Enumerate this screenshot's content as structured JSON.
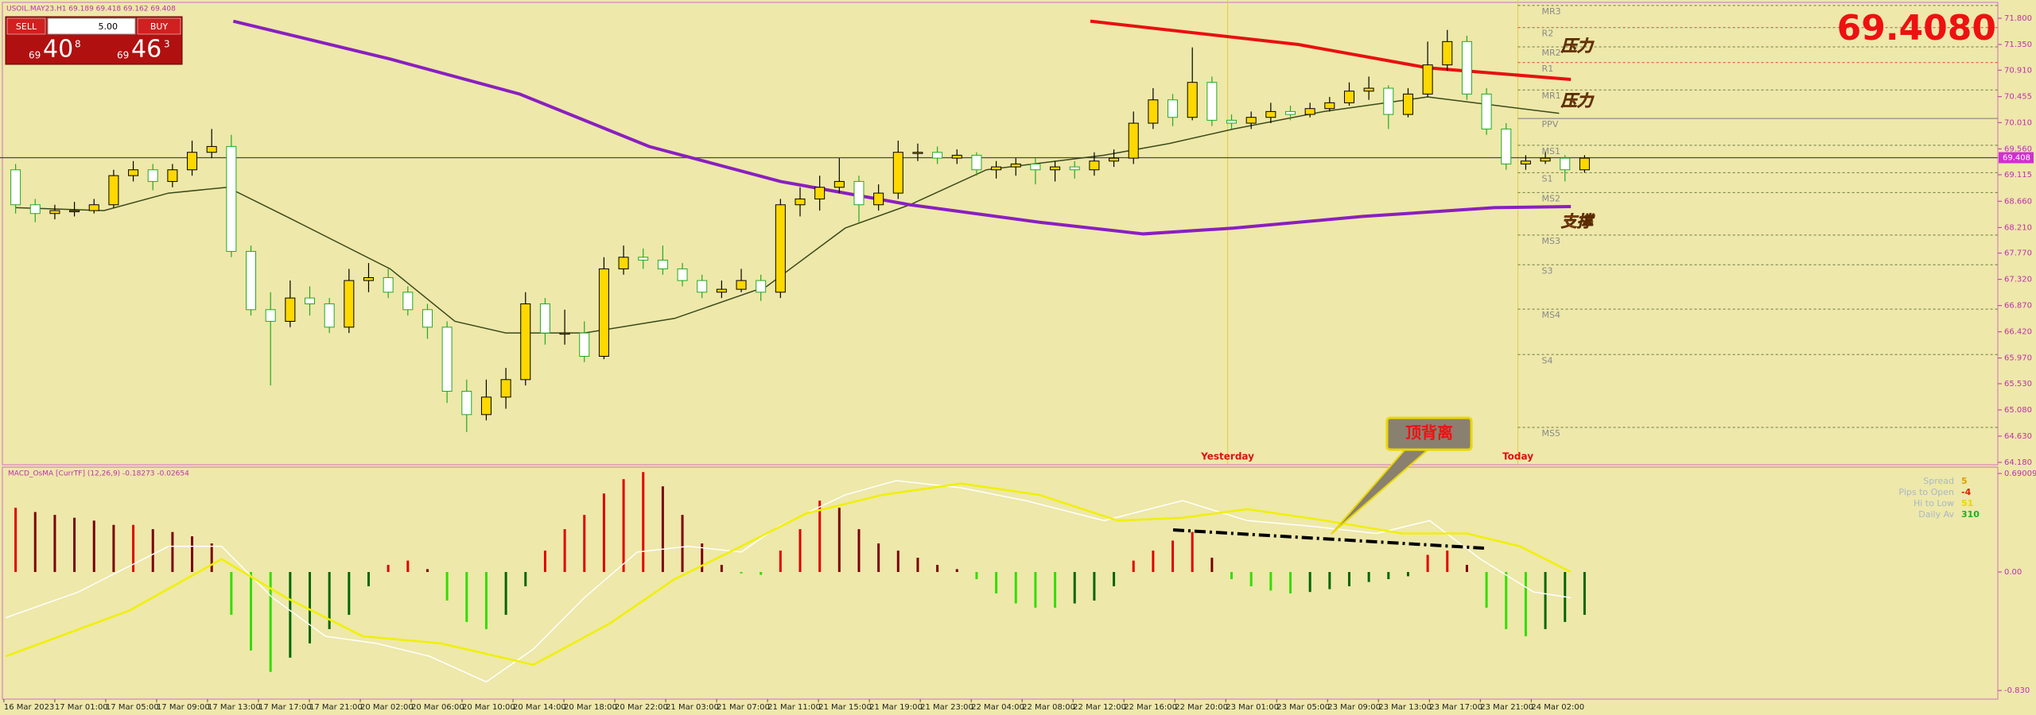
{
  "header": {
    "symbol_line": "USOIL.MAY23.H1  69.189 69.418 69.162 69.408"
  },
  "trade_panel": {
    "sell": "SELL",
    "lot": "5.00",
    "buy": "BUY",
    "bid_small": "69",
    "bid_big": "40",
    "bid_frac": "8",
    "ask_small": "69",
    "ask_big": "46",
    "ask_frac": "3"
  },
  "price_display": "69.4080",
  "price_chart": {
    "ylim": [
      64.18,
      71.8
    ],
    "yticks": [
      {
        "value": 71.8,
        "label": "71.800"
      },
      {
        "value": 71.35,
        "label": "71.350"
      },
      {
        "value": 70.91,
        "label": "70.910"
      },
      70.455,
      {
        "value": 70.01,
        "label": "70.010"
      },
      {
        "value": 69.56,
        "label": "69.560"
      },
      69.115,
      {
        "value": 68.66,
        "label": "68.660"
      },
      {
        "value": 68.21,
        "label": "68.210"
      },
      {
        "value": 67.77,
        "label": "67.770"
      },
      {
        "value": 67.32,
        "label": "67.320"
      },
      {
        "value": 66.87,
        "label": "66.870"
      },
      {
        "value": 66.42,
        "label": "66.420"
      },
      {
        "value": 65.97,
        "label": "65.970"
      },
      {
        "value": 65.53,
        "label": "65.530"
      },
      {
        "value": 65.08,
        "label": "65.080"
      },
      {
        "value": 64.63,
        "label": "64.630"
      },
      {
        "value": 64.18,
        "label": "64.180"
      }
    ],
    "current_price": {
      "value": 69.408,
      "label": "69.408"
    },
    "colors": {
      "up": "#ffd800",
      "up_outline": "#000000",
      "down": "#ffffff",
      "down_outline": "#22aa22"
    },
    "candles": [
      [
        69.2,
        69.3,
        68.45,
        68.6
      ],
      [
        68.6,
        68.7,
        68.3,
        68.45
      ],
      [
        68.45,
        68.6,
        68.35,
        68.5
      ],
      [
        68.5,
        68.65,
        68.4,
        68.5
      ],
      [
        68.5,
        68.7,
        68.45,
        68.6
      ],
      [
        68.6,
        69.2,
        68.55,
        69.1
      ],
      [
        69.1,
        69.35,
        69.0,
        69.2
      ],
      [
        69.2,
        69.3,
        68.85,
        69.0
      ],
      [
        69.0,
        69.3,
        68.9,
        69.2
      ],
      [
        69.2,
        69.7,
        69.1,
        69.5
      ],
      [
        69.5,
        69.9,
        69.4,
        69.6
      ],
      [
        69.6,
        69.8,
        67.7,
        67.8
      ],
      [
        67.8,
        67.9,
        66.7,
        66.8
      ],
      [
        66.8,
        67.1,
        65.5,
        66.6
      ],
      [
        66.6,
        67.3,
        66.5,
        67.0
      ],
      [
        67.0,
        67.2,
        66.7,
        66.9
      ],
      [
        66.9,
        67.0,
        66.4,
        66.5
      ],
      [
        66.5,
        67.5,
        66.4,
        67.3
      ],
      [
        67.3,
        67.6,
        67.1,
        67.35
      ],
      [
        67.35,
        67.5,
        67.0,
        67.1
      ],
      [
        67.1,
        67.2,
        66.7,
        66.8
      ],
      [
        66.8,
        66.9,
        66.3,
        66.5
      ],
      [
        66.5,
        66.6,
        65.2,
        65.4
      ],
      [
        65.4,
        65.6,
        64.7,
        65.0
      ],
      [
        65.0,
        65.6,
        64.9,
        65.3
      ],
      [
        65.3,
        65.8,
        65.1,
        65.6
      ],
      [
        65.6,
        67.1,
        65.5,
        66.9
      ],
      [
        66.9,
        67.0,
        66.2,
        66.4
      ],
      [
        66.4,
        66.8,
        66.2,
        66.4
      ],
      [
        66.4,
        66.6,
        65.9,
        66.0
      ],
      [
        66.0,
        67.7,
        65.95,
        67.5
      ],
      [
        67.5,
        67.9,
        67.4,
        67.7
      ],
      [
        67.7,
        67.85,
        67.5,
        67.65
      ],
      [
        67.65,
        67.9,
        67.4,
        67.5
      ],
      [
        67.5,
        67.6,
        67.2,
        67.3
      ],
      [
        67.3,
        67.4,
        67.0,
        67.1
      ],
      [
        67.1,
        67.3,
        67.0,
        67.15
      ],
      [
        67.15,
        67.5,
        67.1,
        67.3
      ],
      [
        67.3,
        67.4,
        66.95,
        67.1
      ],
      [
        67.1,
        68.7,
        67.0,
        68.6
      ],
      [
        68.6,
        68.9,
        68.4,
        68.7
      ],
      [
        68.7,
        69.1,
        68.5,
        68.9
      ],
      [
        68.9,
        69.4,
        68.8,
        69.0
      ],
      [
        69.0,
        69.1,
        68.3,
        68.6
      ],
      [
        68.6,
        68.95,
        68.5,
        68.8
      ],
      [
        68.8,
        69.7,
        68.7,
        69.5
      ],
      [
        69.5,
        69.65,
        69.35,
        69.5
      ],
      [
        69.5,
        69.6,
        69.3,
        69.4
      ],
      [
        69.4,
        69.55,
        69.3,
        69.45
      ],
      [
        69.45,
        69.5,
        69.1,
        69.2
      ],
      [
        69.2,
        69.35,
        69.05,
        69.25
      ],
      [
        69.25,
        69.4,
        69.1,
        69.3
      ],
      [
        69.3,
        69.4,
        68.95,
        69.2
      ],
      [
        69.2,
        69.35,
        69.0,
        69.25
      ],
      [
        69.25,
        69.35,
        69.05,
        69.2
      ],
      [
        69.2,
        69.5,
        69.1,
        69.35
      ],
      [
        69.35,
        69.55,
        69.25,
        69.4
      ],
      [
        69.4,
        70.2,
        69.3,
        70.0
      ],
      [
        70.0,
        70.6,
        69.9,
        70.4
      ],
      [
        70.4,
        70.5,
        69.95,
        70.1
      ],
      [
        70.1,
        71.3,
        70.05,
        70.7
      ],
      [
        70.7,
        70.8,
        69.95,
        70.05
      ],
      [
        70.05,
        70.15,
        69.9,
        70.0
      ],
      [
        70.0,
        70.2,
        69.9,
        70.1
      ],
      [
        70.1,
        70.35,
        70.0,
        70.2
      ],
      [
        70.2,
        70.3,
        70.05,
        70.15
      ],
      [
        70.15,
        70.35,
        70.1,
        70.25
      ],
      [
        70.25,
        70.45,
        70.2,
        70.35
      ],
      [
        70.35,
        70.7,
        70.3,
        70.55
      ],
      [
        70.55,
        70.8,
        70.4,
        70.6
      ],
      [
        70.6,
        70.65,
        69.9,
        70.15
      ],
      [
        70.15,
        70.6,
        70.1,
        70.5
      ],
      [
        70.5,
        71.4,
        70.45,
        71.0
      ],
      [
        71.0,
        71.6,
        70.9,
        71.4
      ],
      [
        71.4,
        71.5,
        70.4,
        70.5
      ],
      [
        70.5,
        70.6,
        69.8,
        69.9
      ],
      [
        69.9,
        70.0,
        69.2,
        69.3
      ],
      [
        69.3,
        69.45,
        69.2,
        69.35
      ],
      [
        69.35,
        69.5,
        69.3,
        69.4
      ],
      [
        69.4,
        69.45,
        69.0,
        69.2
      ],
      [
        69.2,
        69.45,
        69.15,
        69.4
      ]
    ],
    "ma": [
      {
        "color": "#3a4a1a",
        "width": 1.5,
        "x": [
          0,
          4.5,
          7.8,
          10.8,
          13.8,
          19.1,
          22.4,
          25,
          29,
          33.6,
          38.3,
          42.3,
          45.6,
          49.5,
          55.5,
          58.8,
          62.1,
          66.7,
          72,
          78.7
        ],
        "values": [
          68.55,
          68.5,
          68.8,
          68.9,
          68.4,
          67.5,
          66.6,
          66.4,
          66.4,
          66.65,
          67.2,
          68.2,
          68.6,
          69.2,
          69.45,
          69.65,
          69.9,
          70.2,
          70.45,
          70.17
        ]
      },
      {
        "color": "#8a1fc0",
        "width": 4,
        "x": [
          11.1,
          19.1,
          25.7,
          32.3,
          39,
          45.6,
          52.2,
          57.5,
          62.1,
          68.7,
          75.4,
          79.3
        ],
        "values": [
          71.75,
          71.1,
          70.5,
          69.6,
          69.0,
          68.6,
          68.3,
          68.1,
          68.2,
          68.4,
          68.55,
          68.57
        ]
      },
      {
        "color": "#e81010",
        "width": 4,
        "x": [
          54.8,
          65.4,
          72,
          79.3
        ],
        "values": [
          71.75,
          71.35,
          70.95,
          70.75
        ]
      }
    ],
    "pivots": [
      {
        "label": "MR3",
        "value": 72.02
      },
      {
        "label": "R2",
        "value": 71.64
      },
      {
        "label": "MR2",
        "value": 71.31
      },
      {
        "label": "R1",
        "value": 71.04
      },
      {
        "label": "MR1",
        "value": 70.57
      },
      {
        "label": "PPV",
        "value": 70.08
      },
      {
        "label": "MS1",
        "value": 69.62
      },
      {
        "label": "S1",
        "value": 69.15
      },
      {
        "label": "MS2",
        "value": 68.81
      },
      {
        "label": "MS3",
        "value": 68.08
      },
      {
        "label": "S3",
        "value": 67.57
      },
      {
        "label": "MS4",
        "value": 66.81
      },
      {
        "label": "S4",
        "value": 66.03
      },
      {
        "label": "MS5",
        "value": 64.78
      }
    ],
    "sessions": [
      {
        "label": "Yesterday",
        "x": 61.8
      },
      {
        "label": "Today",
        "x": 76.6
      }
    ],
    "notes": [
      {
        "text": "压力",
        "x": 78.8,
        "value": 71.31
      },
      {
        "text": "压力",
        "x": 78.8,
        "value": 70.37
      },
      {
        "text": "支撑",
        "x": 78.8,
        "value": 68.3
      }
    ],
    "x_labels": [
      "16 Mar 2023",
      "17 Mar 01:00",
      "17 Mar 05:00",
      "17 Mar 09:00",
      "17 Mar 13:00",
      "17 Mar 17:00",
      "17 Mar 21:00",
      "20 Mar 02:00",
      "20 Mar 06:00",
      "20 Mar 10:00",
      "20 Mar 14:00",
      "20 Mar 18:00",
      "20 Mar 22:00",
      "21 Mar 03:00",
      "21 Mar 07:00",
      "21 Mar 11:00",
      "21 Mar 15:00",
      "21 Mar 19:00",
      "21 Mar 23:00",
      "22 Mar 04:00",
      "22 Mar 08:00",
      "22 Mar 12:00",
      "22 Mar 16:00",
      "22 Mar 20:00",
      "23 Mar 01:00",
      "23 Mar 05:00",
      "23 Mar 09:00",
      "23 Mar 13:00",
      "23 Mar 17:00",
      "23 Mar 21:00",
      "24 Mar 02:00"
    ]
  },
  "macd": {
    "label": "MACD_OsMA [CurrTF] (12,26,9) -0.18273 -0.02654",
    "yticks": [
      {
        "value": 0.69009,
        "label": "0.69009"
      },
      {
        "value": 0,
        "label": "0.00"
      },
      {
        "value": -0.83,
        "label": "-0.830"
      }
    ],
    "colors": {
      "pos_up": "#e00000",
      "pos_down": "#7a0000",
      "neg_down": "#33dd00",
      "neg_up": "#006600",
      "macd": "#ffffff",
      "signal": "#f0f000"
    },
    "histogram": [
      0.45,
      0.42,
      0.4,
      0.38,
      0.36,
      0.33,
      0.33,
      0.3,
      0.28,
      0.25,
      0.2,
      -0.3,
      -0.55,
      -0.7,
      -0.6,
      -0.5,
      -0.4,
      -0.3,
      -0.1,
      0.05,
      0.08,
      0.02,
      -0.2,
      -0.35,
      -0.4,
      -0.3,
      -0.1,
      0.15,
      0.3,
      0.4,
      0.55,
      0.65,
      0.7,
      0.6,
      0.4,
      0.2,
      0.05,
      -0.01,
      -0.02,
      0.15,
      0.3,
      0.5,
      0.45,
      0.3,
      0.2,
      0.15,
      0.1,
      0.05,
      0.02,
      -0.05,
      -0.15,
      -0.22,
      -0.25,
      -0.25,
      -0.22,
      -0.2,
      -0.1,
      0.08,
      0.15,
      0.22,
      0.28,
      0.1,
      -0.05,
      -0.1,
      -0.13,
      -0.15,
      -0.14,
      -0.12,
      -0.1,
      -0.07,
      -0.05,
      -0.03,
      0.12,
      0.15,
      0.05,
      -0.25,
      -0.4,
      -0.45,
      -0.4,
      -0.35,
      -0.3
    ],
    "macd_line": {
      "x": [
        -0.5,
        3.2,
        7.8,
        10.5,
        13.1,
        15.8,
        18.4,
        21.1,
        24,
        26.4,
        29,
        31.7,
        34.3,
        37,
        38.9,
        42.3,
        44.9,
        48.2,
        51.5,
        55.5,
        59.5,
        62.8,
        66.1,
        69.4,
        72.1,
        74.7,
        77.4,
        79.3
      ],
      "values": [
        -0.32,
        -0.14,
        0.18,
        0.18,
        -0.18,
        -0.45,
        -0.5,
        -0.59,
        -0.77,
        -0.54,
        -0.18,
        0.14,
        0.18,
        0.14,
        0.32,
        0.54,
        0.64,
        0.59,
        0.5,
        0.36,
        0.5,
        0.36,
        0.32,
        0.27,
        0.36,
        0.09,
        -0.14,
        -0.18
      ]
    },
    "signal_line": {
      "x": [
        -0.5,
        5.8,
        10.5,
        13.8,
        17.7,
        21.7,
        26.4,
        30.3,
        33.6,
        37,
        40.3,
        44.2,
        48.2,
        52.2,
        56.2,
        59.5,
        62.8,
        66.8,
        70.7,
        74,
        76.7,
        79.3
      ],
      "values": [
        -0.59,
        -0.27,
        0.09,
        -0.18,
        -0.45,
        -0.5,
        -0.65,
        -0.36,
        -0.05,
        0.18,
        0.41,
        0.54,
        0.62,
        0.54,
        0.36,
        0.38,
        0.44,
        0.36,
        0.27,
        0.27,
        0.18,
        0
      ]
    },
    "info": [
      {
        "label": "Spread",
        "value": "5",
        "color": "#e0a000"
      },
      {
        "label": "Pips to Open",
        "value": "-4",
        "color": "#e02000"
      },
      {
        "label": "Hi to Low",
        "value": "51",
        "color": "#e8d800"
      },
      {
        "label": "Daily Av",
        "value": "310",
        "color": "#20b020"
      }
    ],
    "callout": "顶背离"
  }
}
